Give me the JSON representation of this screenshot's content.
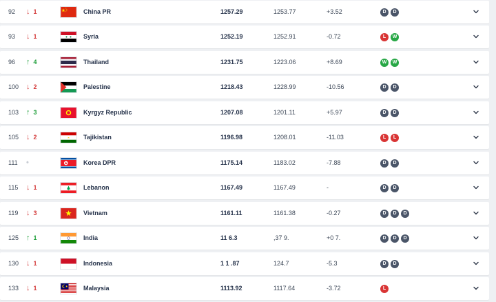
{
  "colors": {
    "down": "#d43a3a",
    "up": "#1f9e3a",
    "draw": "#4a5568",
    "loss": "#d93535",
    "win": "#27a745"
  },
  "rows": [
    {
      "rank": "92",
      "dir": "down",
      "arrow": "↓",
      "move": "1",
      "flag_icon": "china-flag",
      "team": "China PR",
      "points": "1257.29",
      "previous": "1253.77",
      "diff": "+3.52",
      "form": [
        "D",
        "D"
      ]
    },
    {
      "rank": "93",
      "dir": "down",
      "arrow": "↓",
      "move": "1",
      "flag_icon": "syria-flag",
      "team": "Syria",
      "points": "1252.19",
      "previous": "1252.91",
      "diff": "-0.72",
      "form": [
        "L",
        "W"
      ]
    },
    {
      "rank": "96",
      "dir": "up",
      "arrow": "↑",
      "move": "4",
      "flag_icon": "thailand-flag",
      "team": "Thailand",
      "points": "1231.75",
      "previous": "1223.06",
      "diff": "+8.69",
      "form": [
        "W",
        "W"
      ]
    },
    {
      "rank": "100",
      "dir": "down",
      "arrow": "↓",
      "move": "2",
      "flag_icon": "palestine-flag",
      "team": "Palestine",
      "points": "1218.43",
      "previous": "1228.99",
      "diff": "-10.56",
      "form": [
        "D",
        "D"
      ]
    },
    {
      "rank": "103",
      "dir": "up",
      "arrow": "↑",
      "move": "3",
      "flag_icon": "kyrgyzstan-flag",
      "team": "Kyrgyz Republic",
      "points": "1207.08",
      "previous": "1201.11",
      "diff": "+5.97",
      "form": [
        "D",
        "D"
      ]
    },
    {
      "rank": "105",
      "dir": "down",
      "arrow": "↓",
      "move": "2",
      "flag_icon": "tajikistan-flag",
      "team": "Tajikistan",
      "points": "1196.98",
      "previous": "1208.01",
      "diff": "-11.03",
      "form": [
        "L",
        "L"
      ]
    },
    {
      "rank": "111",
      "dir": "same",
      "arrow": "•",
      "move": "",
      "flag_icon": "korea-dpr-flag",
      "team": "Korea DPR",
      "points": "1175.14",
      "previous": "1183.02",
      "diff": "-7.88",
      "form": [
        "D",
        "D"
      ]
    },
    {
      "rank": "115",
      "dir": "down",
      "arrow": "↓",
      "move": "1",
      "flag_icon": "lebanon-flag",
      "team": "Lebanon",
      "points": "1167.49",
      "previous": "1167.49",
      "diff": "-",
      "form": [
        "D",
        "D"
      ]
    },
    {
      "rank": "119",
      "dir": "down",
      "arrow": "↓",
      "move": "3",
      "flag_icon": "vietnam-flag",
      "team": "Vietnam",
      "points": "1161.11",
      "previous": "1161.38",
      "diff": "-0.27",
      "form": [
        "D",
        "D",
        "D"
      ]
    },
    {
      "rank": "125",
      "dir": "up",
      "arrow": "↑",
      "move": "1",
      "flag_icon": "india-flag",
      "team": "India",
      "points": "11 6.3",
      "previous": ",37 9.",
      "diff": "+0 7.",
      "form": [
        "D",
        "D",
        "D"
      ]
    },
    {
      "rank": "130",
      "dir": "down",
      "arrow": "↓",
      "move": "1",
      "flag_icon": "indonesia-flag",
      "team": "Indonesia",
      "points": "1 1 .87",
      "previous": "124.7",
      "diff": "-5.3",
      "form": [
        "D",
        "D"
      ]
    },
    {
      "rank": "133",
      "dir": "down",
      "arrow": "↓",
      "move": "1",
      "flag_icon": "malaysia-flag",
      "team": "Malaysia",
      "points": "1113.92",
      "previous": "1117.64",
      "diff": "-3.72",
      "form": [
        "L"
      ]
    }
  ]
}
